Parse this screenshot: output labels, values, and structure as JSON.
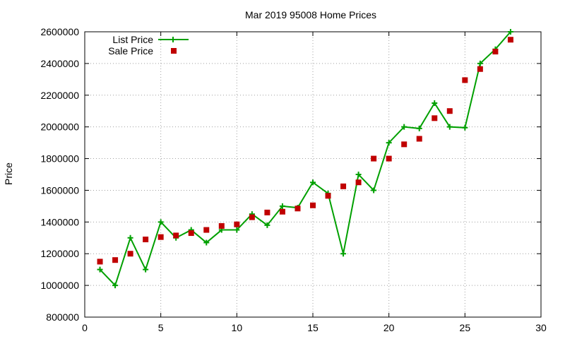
{
  "chart_data": {
    "type": "line",
    "title": "Mar 2019 95008 Home Prices",
    "xlabel": "",
    "ylabel": "Price",
    "xlim": [
      0,
      30
    ],
    "ylim": [
      800000,
      2600000
    ],
    "x_ticks": [
      "0",
      "5",
      "10",
      "15",
      "20",
      "25",
      "30"
    ],
    "y_ticks": [
      "800000",
      "1000000",
      "1200000",
      "1400000",
      "1600000",
      "1800000",
      "2000000",
      "2200000",
      "2400000",
      "2600000"
    ],
    "grid": true,
    "legend_position": "top-left",
    "series": [
      {
        "name": "List Price",
        "style": "line-plus",
        "color": "#00a000",
        "x": [
          1,
          2,
          3,
          4,
          5,
          6,
          7,
          8,
          9,
          10,
          11,
          12,
          13,
          14,
          15,
          16,
          17,
          18,
          19,
          20,
          21,
          22,
          23,
          24,
          25,
          26,
          27,
          28
        ],
        "values": [
          1100000,
          1000000,
          1300000,
          1100000,
          1400000,
          1300000,
          1350000,
          1270000,
          1350000,
          1350000,
          1450000,
          1380000,
          1500000,
          1490000,
          1650000,
          1580000,
          1200000,
          1700000,
          1600000,
          1900000,
          2000000,
          1990000,
          2150000,
          2000000,
          1995000,
          2400000,
          2490000,
          2600000
        ]
      },
      {
        "name": "Sale Price",
        "style": "square",
        "color": "#c00000",
        "x": [
          1,
          2,
          3,
          4,
          5,
          6,
          7,
          8,
          9,
          10,
          11,
          12,
          13,
          14,
          15,
          16,
          17,
          18,
          19,
          20,
          21,
          22,
          23,
          24,
          25,
          26,
          27,
          28
        ],
        "values": [
          1150000,
          1160000,
          1200000,
          1290000,
          1305000,
          1315000,
          1330000,
          1350000,
          1375000,
          1385000,
          1430000,
          1460000,
          1465000,
          1485000,
          1505000,
          1565000,
          1625000,
          1650000,
          1800000,
          1800000,
          1890000,
          1925000,
          2055000,
          2100000,
          2295000,
          2365000,
          2475000,
          2550000
        ]
      }
    ]
  }
}
